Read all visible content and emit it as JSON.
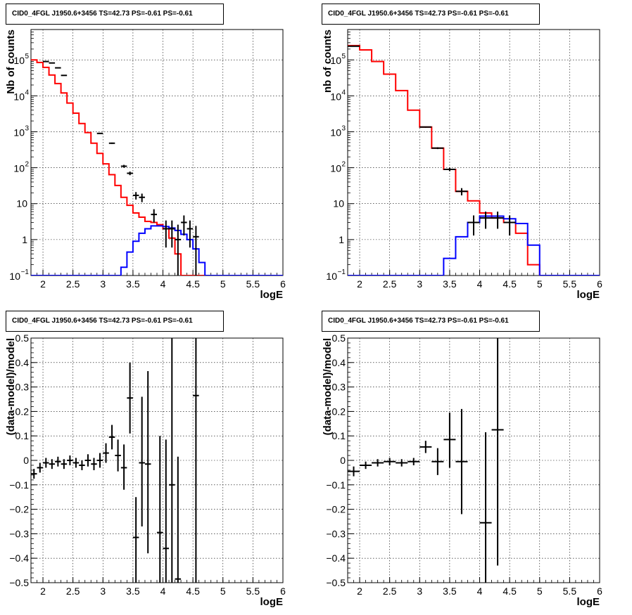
{
  "colors": {
    "data": "#000000",
    "total_model": "#ff0000",
    "source_model": "#0000ff",
    "grid": "#000000"
  },
  "panels": [
    {
      "title": "CID0_4FGL J1950.6+3456 TS=42.73 PS=-0.61 PS=-0.61",
      "chart_data": {
        "type": "step-histogram",
        "xlabel": "logE",
        "ylabel": "Nb of counts",
        "xlim": [
          1.8,
          6.0
        ],
        "ylim": [
          0.1,
          700000
        ],
        "yscale": "log",
        "grid": true,
        "xticks": [
          "2",
          "2.5",
          "3",
          "3.5",
          "4",
          "4.5",
          "5",
          "5.5",
          "6"
        ],
        "yticks": [
          {
            "value": 0.1,
            "base": "10",
            "exp": "−1"
          },
          {
            "value": 1,
            "label": "1"
          },
          {
            "value": 10,
            "label": "10"
          },
          {
            "value": 100,
            "base": "10",
            "exp": "2"
          },
          {
            "value": 1000,
            "base": "10",
            "exp": "3"
          },
          {
            "value": 10000,
            "base": "10",
            "exp": "4"
          },
          {
            "value": 100000,
            "base": "10",
            "exp": "5"
          }
        ],
        "bin_edges": [
          1.8,
          1.9,
          2.0,
          2.1,
          2.2,
          2.3,
          2.4,
          2.5,
          2.6,
          2.7,
          2.8,
          2.9,
          3.0,
          3.1,
          3.2,
          3.3,
          3.4,
          3.5,
          3.6,
          3.7,
          3.8,
          3.9,
          4.0,
          4.1,
          4.2,
          4.3,
          4.4,
          4.5,
          4.6,
          4.7,
          4.8,
          4.9,
          5.0,
          5.1,
          5.2,
          5.3,
          5.4,
          5.5,
          5.6,
          5.7,
          5.8,
          5.9,
          6.0
        ],
        "series": [
          {
            "name": "total model",
            "color": "#ff0000",
            "values": [
              100000,
              85000,
              62000,
              38000,
              22000,
              12000,
              6300,
              3300,
              1700,
              950,
              480,
              250,
              128,
              64,
              32,
              15,
              9,
              5.5,
              4.2,
              3.2,
              3.0,
              2.6,
              2.0,
              1.1,
              0.4,
              0.1,
              0.1,
              0.1,
              0.1,
              0.1,
              0.1,
              0.1,
              0.1,
              0.1,
              0.1,
              0.1,
              0.1,
              0.1,
              0.1,
              0.1,
              0.1,
              0.1
            ]
          },
          {
            "name": "source model",
            "color": "#0000ff",
            "values": [
              0.1,
              0.1,
              0.1,
              0.1,
              0.1,
              0.1,
              0.1,
              0.1,
              0.1,
              0.1,
              0.1,
              0.1,
              0.1,
              0.1,
              0.1,
              0.17,
              0.45,
              0.9,
              1.5,
              2.0,
              2.4,
              2.4,
              2.3,
              2.1,
              1.8,
              1.4,
              1.0,
              0.55,
              0.23,
              0.1,
              0.1,
              0.1,
              0.1,
              0.1,
              0.1,
              0.1,
              0.1,
              0.1,
              0.1,
              0.1,
              0.1,
              0.1
            ]
          }
        ],
        "points": [
          {
            "x": 2.05,
            "y": 90000,
            "lo": 89000,
            "hi": 91000,
            "xe": 0.05
          },
          {
            "x": 2.15,
            "y": 82000,
            "lo": 81000,
            "hi": 83000,
            "xe": 0.05
          },
          {
            "x": 2.25,
            "y": 60000,
            "lo": 59000,
            "hi": 61000,
            "xe": 0.05
          },
          {
            "x": 2.35,
            "y": 37000,
            "lo": 36500,
            "hi": 37500,
            "xe": 0.05
          },
          {
            "x": 2.95,
            "y": 900,
            "lo": 870,
            "hi": 930,
            "xe": 0.05
          },
          {
            "x": 3.15,
            "y": 480,
            "lo": 460,
            "hi": 500,
            "xe": 0.05
          },
          {
            "x": 3.35,
            "y": 110,
            "lo": 100,
            "hi": 120,
            "xe": 0.05
          },
          {
            "x": 3.45,
            "y": 70,
            "lo": 62,
            "hi": 78,
            "xe": 0.05
          },
          {
            "x": 3.55,
            "y": 17,
            "lo": 13,
            "hi": 21,
            "xe": 0.05
          },
          {
            "x": 3.65,
            "y": 15,
            "lo": 11,
            "hi": 19,
            "xe": 0.05
          },
          {
            "x": 3.85,
            "y": 5,
            "lo": 3,
            "hi": 7,
            "xe": 0.05
          },
          {
            "x": 4.05,
            "y": 2,
            "lo": 0.6,
            "hi": 3.4,
            "xe": 0.05
          },
          {
            "x": 4.15,
            "y": 2,
            "lo": 0.6,
            "hi": 3.4,
            "xe": 0.05
          },
          {
            "x": 4.25,
            "y": 1,
            "lo": 0.1,
            "hi": 2.6,
            "xe": 0.05
          },
          {
            "x": 4.35,
            "y": 3,
            "lo": 1.3,
            "hi": 4.7,
            "xe": 0.05
          },
          {
            "x": 4.45,
            "y": 2,
            "lo": 0.6,
            "hi": 3.4,
            "xe": 0.05
          },
          {
            "x": 4.55,
            "y": 1.2,
            "lo": 0.1,
            "hi": 2.4,
            "xe": 0.05
          }
        ]
      }
    },
    {
      "title": "CID0_4FGL J1950.6+3456 TS=42.73 PS=-0.61 PS=-0.61",
      "chart_data": {
        "type": "step-histogram",
        "xlabel": "logE",
        "ylabel": "nb of counts",
        "xlim": [
          1.8,
          6.0
        ],
        "ylim": [
          0.1,
          700000
        ],
        "yscale": "log",
        "grid": true,
        "xticks": [
          "2",
          "2.5",
          "3",
          "3.5",
          "4",
          "4.5",
          "5",
          "5.5",
          "6"
        ],
        "yticks": [
          {
            "value": 0.1,
            "base": "10",
            "exp": "−1"
          },
          {
            "value": 1,
            "label": "1"
          },
          {
            "value": 10,
            "label": "10"
          },
          {
            "value": 100,
            "base": "10",
            "exp": "2"
          },
          {
            "value": 1000,
            "base": "10",
            "exp": "3"
          },
          {
            "value": 10000,
            "base": "10",
            "exp": "4"
          },
          {
            "value": 100000,
            "base": "10",
            "exp": "5"
          }
        ],
        "bin_edges": [
          1.8,
          2.0,
          2.2,
          2.4,
          2.6,
          2.8,
          3.0,
          3.2,
          3.4,
          3.6,
          3.8,
          4.0,
          4.2,
          4.4,
          4.6,
          4.8,
          5.0,
          5.2,
          5.4,
          5.6,
          5.8,
          6.0
        ],
        "series": [
          {
            "name": "total model",
            "color": "#ff0000",
            "values": [
              250000,
              190000,
              90000,
              40000,
              14000,
              4000,
              1350,
              350,
              90,
              22,
              12,
              5.5,
              4.0,
              3.0,
              1.5,
              0.2,
              0.1,
              0.1,
              0.1,
              0.1,
              0.1
            ]
          },
          {
            "name": "source model",
            "color": "#0000ff",
            "values": [
              0.1,
              0.1,
              0.1,
              0.1,
              0.1,
              0.1,
              0.1,
              0.1,
              0.3,
              1.2,
              3.0,
              4.5,
              4.5,
              3.8,
              2.8,
              0.7,
              0.1,
              0.1,
              0.1,
              0.1,
              0.1
            ]
          }
        ],
        "points": [
          {
            "x": 1.9,
            "y": 240000,
            "lo": 239000,
            "hi": 241000,
            "xe": 0.1
          },
          {
            "x": 3.1,
            "y": 1350,
            "lo": 1300,
            "hi": 1400,
            "xe": 0.1
          },
          {
            "x": 3.3,
            "y": 350,
            "lo": 330,
            "hi": 370,
            "xe": 0.1
          },
          {
            "x": 3.5,
            "y": 90,
            "lo": 80,
            "hi": 100,
            "xe": 0.1
          },
          {
            "x": 3.7,
            "y": 22,
            "lo": 17,
            "hi": 27,
            "xe": 0.1
          },
          {
            "x": 3.9,
            "y": 3,
            "lo": 1.3,
            "hi": 4.7,
            "xe": 0.1
          },
          {
            "x": 4.1,
            "y": 4,
            "lo": 2,
            "hi": 6,
            "xe": 0.1
          },
          {
            "x": 4.3,
            "y": 4,
            "lo": 2,
            "hi": 6,
            "xe": 0.1
          },
          {
            "x": 4.5,
            "y": 3,
            "lo": 1.3,
            "hi": 4.7,
            "xe": 0.1
          }
        ]
      }
    },
    {
      "title": "CID0_4FGL J1950.6+3456 TS=42.73 PS=-0.61 PS=-0.61",
      "chart_data": {
        "type": "scatter-errorbars",
        "xlabel": "logE",
        "ylabel": "(data-model)/model",
        "xlim": [
          1.8,
          6.0
        ],
        "ylim": [
          -0.5,
          0.5
        ],
        "yscale": "linear",
        "grid": true,
        "xticks": [
          "2",
          "2.5",
          "3",
          "3.5",
          "4",
          "4.5",
          "5",
          "5.5",
          "6"
        ],
        "yticks": [
          "−0.5",
          "−0.4",
          "−0.3",
          "−0.2",
          "−0.1",
          "0",
          "0.1",
          "0.2",
          "0.3",
          "0.4",
          "0.5"
        ],
        "points": [
          {
            "x": 1.85,
            "y": -0.055,
            "lo": -0.075,
            "hi": -0.035,
            "xe": 0.05
          },
          {
            "x": 1.95,
            "y": -0.03,
            "lo": -0.05,
            "hi": -0.01,
            "xe": 0.05
          },
          {
            "x": 2.05,
            "y": -0.01,
            "lo": -0.03,
            "hi": 0.01,
            "xe": 0.05
          },
          {
            "x": 2.15,
            "y": -0.015,
            "lo": -0.035,
            "hi": 0.005,
            "xe": 0.05
          },
          {
            "x": 2.25,
            "y": -0.005,
            "lo": -0.025,
            "hi": 0.015,
            "xe": 0.05
          },
          {
            "x": 2.35,
            "y": -0.015,
            "lo": -0.035,
            "hi": 0.005,
            "xe": 0.05
          },
          {
            "x": 2.45,
            "y": 0.0,
            "lo": -0.02,
            "hi": 0.02,
            "xe": 0.05
          },
          {
            "x": 2.55,
            "y": -0.01,
            "lo": -0.03,
            "hi": 0.01,
            "xe": 0.05
          },
          {
            "x": 2.65,
            "y": -0.02,
            "lo": -0.04,
            "hi": 0.0,
            "xe": 0.05
          },
          {
            "x": 2.75,
            "y": 0.0,
            "lo": -0.025,
            "hi": 0.025,
            "xe": 0.05
          },
          {
            "x": 2.85,
            "y": -0.015,
            "lo": -0.04,
            "hi": 0.01,
            "xe": 0.05
          },
          {
            "x": 2.95,
            "y": 0.0,
            "lo": -0.03,
            "hi": 0.03,
            "xe": 0.05
          },
          {
            "x": 3.05,
            "y": 0.03,
            "lo": -0.01,
            "hi": 0.07,
            "xe": 0.05
          },
          {
            "x": 3.15,
            "y": 0.095,
            "lo": 0.045,
            "hi": 0.145,
            "xe": 0.05
          },
          {
            "x": 3.25,
            "y": 0.02,
            "lo": -0.045,
            "hi": 0.085,
            "xe": 0.05
          },
          {
            "x": 3.35,
            "y": -0.03,
            "lo": -0.12,
            "hi": 0.065,
            "xe": 0.05
          },
          {
            "x": 3.45,
            "y": 0.255,
            "lo": 0.11,
            "hi": 0.4,
            "xe": 0.05
          },
          {
            "x": 3.55,
            "y": -0.315,
            "lo": -0.5,
            "hi": -0.15,
            "xe": 0.05
          },
          {
            "x": 3.65,
            "y": -0.01,
            "lo": -0.27,
            "hi": 0.26,
            "xe": 0.05
          },
          {
            "x": 3.75,
            "y": -0.015,
            "lo": -0.38,
            "hi": 0.365,
            "xe": 0.05
          },
          {
            "x": 3.95,
            "y": -0.295,
            "lo": -0.5,
            "hi": 0.1,
            "xe": 0.05
          },
          {
            "x": 4.05,
            "y": -0.36,
            "lo": -0.5,
            "hi": 0.085,
            "xe": 0.05
          },
          {
            "x": 4.15,
            "y": -0.1,
            "lo": -0.5,
            "hi": 0.5,
            "xe": 0.05
          },
          {
            "x": 4.25,
            "y": -0.485,
            "lo": -0.5,
            "hi": 0.015,
            "xe": 0.05
          },
          {
            "x": 4.55,
            "y": 0.265,
            "lo": -0.5,
            "hi": 0.5,
            "xe": 0.05
          }
        ]
      }
    },
    {
      "title": "CID0_4FGL J1950.6+3456 TS=42.73 PS=-0.61 PS=-0.61",
      "chart_data": {
        "type": "scatter-errorbars",
        "xlabel": "logE",
        "ylabel": "(data-model)/model",
        "xlim": [
          1.8,
          6.0
        ],
        "ylim": [
          -0.5,
          0.5
        ],
        "yscale": "linear",
        "grid": true,
        "xticks": [
          "2",
          "2.5",
          "3",
          "3.5",
          "4",
          "4.5",
          "5",
          "5.5",
          "6"
        ],
        "yticks": [
          "−0.5",
          "−0.4",
          "−0.3",
          "−0.2",
          "−0.1",
          "0",
          "0.1",
          "0.2",
          "0.3",
          "0.4",
          "0.5"
        ],
        "points": [
          {
            "x": 1.9,
            "y": -0.045,
            "lo": -0.065,
            "hi": -0.025,
            "xe": 0.1
          },
          {
            "x": 2.1,
            "y": -0.02,
            "lo": -0.035,
            "hi": -0.005,
            "xe": 0.1
          },
          {
            "x": 2.3,
            "y": -0.01,
            "lo": -0.025,
            "hi": 0.005,
            "xe": 0.1
          },
          {
            "x": 2.5,
            "y": -0.005,
            "lo": -0.02,
            "hi": 0.01,
            "xe": 0.1
          },
          {
            "x": 2.7,
            "y": -0.01,
            "lo": -0.025,
            "hi": 0.005,
            "xe": 0.1
          },
          {
            "x": 2.9,
            "y": -0.005,
            "lo": -0.02,
            "hi": 0.01,
            "xe": 0.1
          },
          {
            "x": 3.1,
            "y": 0.055,
            "lo": 0.03,
            "hi": 0.08,
            "xe": 0.1
          },
          {
            "x": 3.3,
            "y": -0.005,
            "lo": -0.06,
            "hi": 0.05,
            "xe": 0.1
          },
          {
            "x": 3.5,
            "y": 0.085,
            "lo": -0.03,
            "hi": 0.195,
            "xe": 0.1
          },
          {
            "x": 3.7,
            "y": -0.005,
            "lo": -0.22,
            "hi": 0.21,
            "xe": 0.1
          },
          {
            "x": 4.1,
            "y": -0.255,
            "lo": -0.5,
            "hi": 0.115,
            "xe": 0.1
          },
          {
            "x": 4.3,
            "y": 0.125,
            "lo": -0.43,
            "hi": 0.5,
            "xe": 0.1
          }
        ]
      }
    }
  ]
}
